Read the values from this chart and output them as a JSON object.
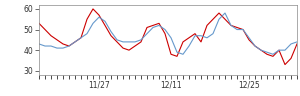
{
  "red_line": [
    53,
    50,
    47,
    45,
    43,
    42,
    44,
    46,
    55,
    60,
    57,
    52,
    47,
    44,
    41,
    40,
    42,
    44,
    51,
    52,
    53,
    48,
    38,
    37,
    44,
    46,
    48,
    44,
    52,
    55,
    58,
    55,
    52,
    51,
    50,
    45,
    42,
    40,
    38,
    37,
    40,
    33,
    36,
    43
  ],
  "blue_line": [
    43,
    42,
    42,
    41,
    41,
    42,
    44,
    46,
    48,
    53,
    56,
    54,
    49,
    45,
    44,
    44,
    44,
    45,
    48,
    51,
    52,
    50,
    46,
    39,
    38,
    42,
    47,
    47,
    46,
    48,
    55,
    58,
    52,
    50,
    50,
    46,
    42,
    40,
    39,
    38,
    40,
    40,
    43,
    44
  ],
  "xlim": [
    0,
    43
  ],
  "ylim": [
    28,
    62
  ],
  "yticks": [
    30,
    40,
    50,
    60
  ],
  "xtick_labels": [
    "11/27",
    "12/11",
    "12/25"
  ],
  "xtick_label_positions": [
    10,
    22,
    35
  ],
  "xtick_minor_positions": [
    0,
    1,
    2,
    3,
    4,
    5,
    6,
    7,
    8,
    9,
    10,
    11,
    12,
    13,
    14,
    15,
    16,
    17,
    18,
    19,
    20,
    21,
    22,
    23,
    24,
    25,
    26,
    27,
    28,
    29,
    30,
    31,
    32,
    33,
    34,
    35,
    36,
    37,
    38,
    39,
    40,
    41,
    42,
    43
  ],
  "red_color": "#cc0000",
  "blue_color": "#6699cc",
  "bg_color": "#ffffff",
  "linewidth": 0.8
}
